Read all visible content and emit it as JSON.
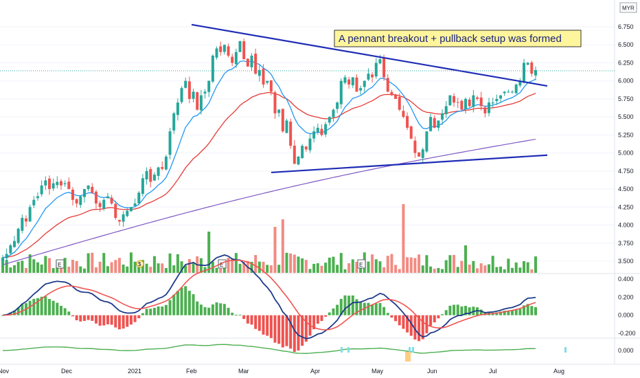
{
  "currency": "MYR",
  "annotation": "A pennant breakout + pullback setup was formed",
  "colors": {
    "up": "#26a69a",
    "upVol": "#4caf50",
    "down": "#ef5350",
    "downVol": "#f28b82",
    "ema_short": "#2196f3",
    "ema_mid": "#e53935",
    "ema_long": "#7e57c2",
    "pattern": "#1e2cb5",
    "macd": "#1e3a8a",
    "signal": "#ef5350",
    "osc": "#4caf50",
    "oscNeg": "#ef5350",
    "annotationBg": "#fff59d",
    "annotationText": "#1a237e"
  },
  "x_axis": {
    "labels": [
      "Nov",
      "Dec",
      "2021",
      "Feb",
      "Mar",
      "Apr",
      "May",
      "Jun",
      "Jul",
      "Aug"
    ]
  },
  "price_axis": {
    "ticks": [
      "6.750",
      "6.500",
      "6.250",
      "6.000",
      "5.750",
      "5.500",
      "5.250",
      "5.000",
      "4.750",
      "4.500",
      "4.250",
      "4.000",
      "3.750",
      "3.500"
    ]
  },
  "macd_axis": {
    "ticks": [
      "0.400",
      "0.200",
      "0.000",
      "-0.200"
    ]
  },
  "osc_axis": {
    "ticks": [
      "0.000"
    ]
  },
  "event_markers": [
    "E",
    "E",
    "E"
  ],
  "dividend_marker": "$",
  "chart_data": {
    "type": "candlestick",
    "start_price": 3.55,
    "closes": [
      3.55,
      3.6,
      3.72,
      3.78,
      3.95,
      4.1,
      4.05,
      4.25,
      4.35,
      4.4,
      4.55,
      4.62,
      4.5,
      4.58,
      4.6,
      4.55,
      4.58,
      4.5,
      4.35,
      4.3,
      4.4,
      4.5,
      4.55,
      4.45,
      4.3,
      4.25,
      4.35,
      4.4,
      4.3,
      4.1,
      4.05,
      4.15,
      4.2,
      4.25,
      4.3,
      4.45,
      4.65,
      4.75,
      4.6,
      4.7,
      4.8,
      4.78,
      4.95,
      5.3,
      5.55,
      5.7,
      5.9,
      6.0,
      5.75,
      5.85,
      5.6,
      5.8,
      5.85,
      6.0,
      6.35,
      6.45,
      6.4,
      6.5,
      6.35,
      6.25,
      6.4,
      6.55,
      6.3,
      6.2,
      6.35,
      6.1,
      6.15,
      5.95,
      6.0,
      5.85,
      5.55,
      5.6,
      5.3,
      5.45,
      5.1,
      4.85,
      4.95,
      5.1,
      5.05,
      5.2,
      5.3,
      5.35,
      5.25,
      5.4,
      5.5,
      5.6,
      5.7,
      6.0,
      6.05,
      5.95,
      6.05,
      5.85,
      5.9,
      6.0,
      6.1,
      6.05,
      6.25,
      6.3,
      6.05,
      5.85,
      5.8,
      5.75,
      5.6,
      5.5,
      5.35,
      5.2,
      5.0,
      4.95,
      5.05,
      5.3,
      5.5,
      5.35,
      5.45,
      5.55,
      5.65,
      5.8,
      5.7,
      5.7,
      5.6,
      5.75,
      5.65,
      5.8,
      5.75,
      5.65,
      5.55,
      5.7,
      5.7,
      5.75,
      5.8,
      5.85,
      5.85,
      5.85,
      5.95,
      6.0,
      6.25,
      6.25,
      6.1,
      6.15
    ],
    "pennant_upper": [
      [
        6.78,
        5.93
      ]
    ],
    "pennant_lower": [
      [
        4.73,
        4.97
      ]
    ]
  }
}
